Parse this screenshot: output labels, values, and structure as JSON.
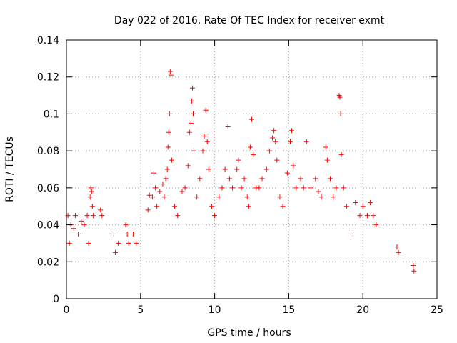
{
  "chart_data": {
    "type": "scatter",
    "title": "Day 022 of 2016, Rate Of TEC Index for receiver exmt",
    "xlabel": "GPS time / hours",
    "ylabel": "ROTI / TECUs",
    "xlim": [
      0,
      25
    ],
    "ylim": [
      0,
      0.14
    ],
    "xticks": [
      "0",
      "5",
      "10",
      "15",
      "20",
      "25"
    ],
    "yticks": [
      "0",
      "0.02",
      "0.04",
      "0.06",
      "0.08",
      "0.1",
      "0.12",
      "0.14"
    ],
    "grid": true,
    "marker": "+",
    "color": "#ff0000",
    "series": [
      {
        "points": [
          [
            0.1,
            0.045
          ],
          [
            0.2,
            0.03
          ],
          [
            0.3,
            0.04
          ],
          [
            0.5,
            0.038
          ],
          [
            0.6,
            0.045
          ],
          [
            0.8,
            0.035
          ],
          [
            1.0,
            0.042
          ],
          [
            1.2,
            0.04
          ],
          [
            1.4,
            0.045
          ],
          [
            1.5,
            0.03
          ],
          [
            1.6,
            0.055
          ],
          [
            1.65,
            0.06
          ],
          [
            1.7,
            0.058
          ],
          [
            1.75,
            0.05
          ],
          [
            1.8,
            0.045
          ],
          [
            2.3,
            0.048
          ],
          [
            2.4,
            0.045
          ],
          [
            3.2,
            0.035
          ],
          [
            3.3,
            0.025
          ],
          [
            3.5,
            0.03
          ],
          [
            4.0,
            0.04
          ],
          [
            4.1,
            0.035
          ],
          [
            4.2,
            0.03
          ],
          [
            4.5,
            0.035
          ],
          [
            4.7,
            0.03
          ],
          [
            5.5,
            0.048
          ],
          [
            5.6,
            0.056
          ],
          [
            5.8,
            0.055
          ],
          [
            5.9,
            0.068
          ],
          [
            6.0,
            0.06
          ],
          [
            6.1,
            0.05
          ],
          [
            6.3,
            0.058
          ],
          [
            6.5,
            0.062
          ],
          [
            6.6,
            0.055
          ],
          [
            6.7,
            0.065
          ],
          [
            6.8,
            0.07
          ],
          [
            6.85,
            0.082
          ],
          [
            6.9,
            0.09
          ],
          [
            6.95,
            0.1
          ],
          [
            7.0,
            0.123
          ],
          [
            7.05,
            0.121
          ],
          [
            7.1,
            0.075
          ],
          [
            7.3,
            0.05
          ],
          [
            7.5,
            0.045
          ],
          [
            7.8,
            0.058
          ],
          [
            8.0,
            0.06
          ],
          [
            8.2,
            0.072
          ],
          [
            8.3,
            0.09
          ],
          [
            8.4,
            0.095
          ],
          [
            8.45,
            0.107
          ],
          [
            8.5,
            0.114
          ],
          [
            8.55,
            0.1
          ],
          [
            8.6,
            0.08
          ],
          [
            8.8,
            0.055
          ],
          [
            9.0,
            0.065
          ],
          [
            9.2,
            0.08
          ],
          [
            9.3,
            0.088
          ],
          [
            9.4,
            0.102
          ],
          [
            9.5,
            0.085
          ],
          [
            9.6,
            0.07
          ],
          [
            9.8,
            0.05
          ],
          [
            10.0,
            0.045
          ],
          [
            10.3,
            0.055
          ],
          [
            10.5,
            0.06
          ],
          [
            10.7,
            0.07
          ],
          [
            10.9,
            0.093
          ],
          [
            11.0,
            0.065
          ],
          [
            11.2,
            0.06
          ],
          [
            11.5,
            0.07
          ],
          [
            11.6,
            0.075
          ],
          [
            11.8,
            0.06
          ],
          [
            12.0,
            0.065
          ],
          [
            12.2,
            0.055
          ],
          [
            12.3,
            0.05
          ],
          [
            12.4,
            0.082
          ],
          [
            12.5,
            0.097
          ],
          [
            12.6,
            0.078
          ],
          [
            12.8,
            0.06
          ],
          [
            13.0,
            0.06
          ],
          [
            13.2,
            0.065
          ],
          [
            13.5,
            0.07
          ],
          [
            13.7,
            0.08
          ],
          [
            13.9,
            0.087
          ],
          [
            14.0,
            0.091
          ],
          [
            14.1,
            0.085
          ],
          [
            14.2,
            0.075
          ],
          [
            14.4,
            0.055
          ],
          [
            14.6,
            0.05
          ],
          [
            14.9,
            0.068
          ],
          [
            15.1,
            0.085
          ],
          [
            15.2,
            0.091
          ],
          [
            15.3,
            0.072
          ],
          [
            15.5,
            0.06
          ],
          [
            15.8,
            0.065
          ],
          [
            16.0,
            0.06
          ],
          [
            16.2,
            0.085
          ],
          [
            16.5,
            0.06
          ],
          [
            16.8,
            0.065
          ],
          [
            17.0,
            0.058
          ],
          [
            17.2,
            0.055
          ],
          [
            17.5,
            0.082
          ],
          [
            17.6,
            0.075
          ],
          [
            17.8,
            0.065
          ],
          [
            18.0,
            0.055
          ],
          [
            18.2,
            0.06
          ],
          [
            18.4,
            0.11
          ],
          [
            18.45,
            0.109
          ],
          [
            18.5,
            0.1
          ],
          [
            18.55,
            0.078
          ],
          [
            18.7,
            0.06
          ],
          [
            18.9,
            0.05
          ],
          [
            19.2,
            0.035
          ],
          [
            19.5,
            0.052
          ],
          [
            19.8,
            0.045
          ],
          [
            20.0,
            0.05
          ],
          [
            20.3,
            0.045
          ],
          [
            20.5,
            0.052
          ],
          [
            20.7,
            0.045
          ],
          [
            20.9,
            0.04
          ],
          [
            22.3,
            0.028
          ],
          [
            22.4,
            0.025
          ],
          [
            23.4,
            0.018
          ],
          [
            23.45,
            0.015
          ]
        ]
      }
    ]
  }
}
